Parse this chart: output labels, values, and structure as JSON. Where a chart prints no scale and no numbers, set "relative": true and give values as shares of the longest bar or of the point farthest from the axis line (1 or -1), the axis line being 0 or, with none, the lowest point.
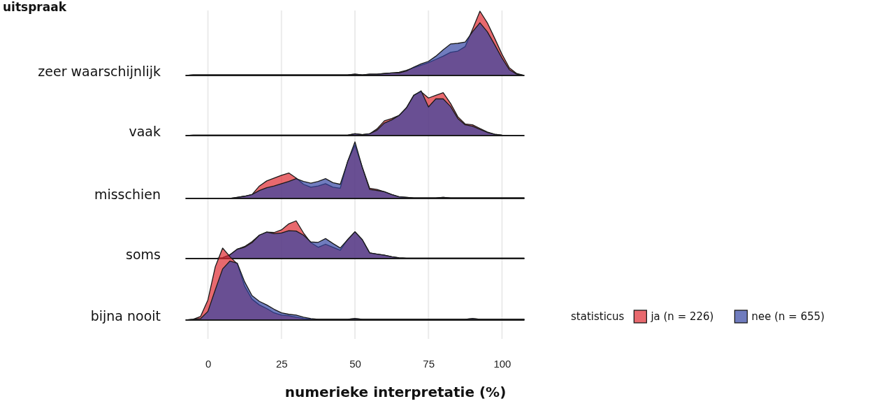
{
  "chart_data": [
    {
      "type": "other",
      "title": "uitspraak"
    },
    {
      "type": "area",
      "ylabel": "zeer waarschijnlijk",
      "relative": true,
      "xlim": [
        -7.5,
        107.5
      ],
      "xticks": [
        0,
        25,
        50,
        75,
        100
      ],
      "tick_labels": false,
      "grid": "x",
      "x": [
        -7.5,
        -5,
        -2.5,
        0,
        2.5,
        5,
        7.5,
        10,
        12.5,
        15,
        17.5,
        20,
        22.5,
        25,
        27.5,
        30,
        32.5,
        35,
        37.5,
        40,
        42.5,
        45,
        47.5,
        50,
        52.5,
        55,
        57.5,
        60,
        62.5,
        65,
        67.5,
        70,
        72.5,
        75,
        77.5,
        80,
        82.5,
        85,
        87.5,
        90,
        92.5,
        95,
        97.5,
        100,
        102.5,
        105,
        107.5
      ],
      "series": [
        {
          "color": "#de2a30",
          "values": [
            0,
            0.01,
            0.01,
            0.01,
            0.01,
            0.01,
            0.01,
            0.01,
            0.01,
            0.01,
            0.01,
            0.01,
            0.01,
            0.01,
            0.01,
            0.01,
            0.01,
            0.01,
            0.01,
            0.01,
            0.01,
            0.01,
            0.01,
            0.02,
            0.01,
            0.02,
            0.02,
            0.03,
            0.04,
            0.05,
            0.08,
            0.12,
            0.16,
            0.2,
            0.25,
            0.3,
            0.36,
            0.38,
            0.45,
            0.72,
            1,
            0.82,
            0.58,
            0.33,
            0.12,
            0.03,
            0
          ]
        },
        {
          "color": "#3345a2",
          "values": [
            0,
            0.01,
            0.01,
            0.01,
            0.01,
            0.01,
            0.01,
            0.01,
            0.01,
            0.01,
            0.01,
            0.01,
            0.01,
            0.01,
            0.01,
            0.01,
            0.01,
            0.01,
            0.01,
            0.01,
            0.01,
            0.01,
            0.01,
            0.02,
            0.01,
            0.02,
            0.02,
            0.03,
            0.04,
            0.04,
            0.07,
            0.13,
            0.18,
            0.22,
            0.3,
            0.4,
            0.49,
            0.5,
            0.52,
            0.68,
            0.82,
            0.68,
            0.48,
            0.27,
            0.09,
            0.02,
            0
          ]
        }
      ]
    },
    {
      "type": "area",
      "ylabel": "vaak",
      "relative": true,
      "xlim": [
        -7.5,
        107.5
      ],
      "xticks": [
        0,
        25,
        50,
        75,
        100
      ],
      "tick_labels": false,
      "grid": "x",
      "x": [
        -7.5,
        -5,
        -2.5,
        0,
        2.5,
        5,
        7.5,
        10,
        12.5,
        15,
        17.5,
        20,
        22.5,
        25,
        27.5,
        30,
        32.5,
        35,
        37.5,
        40,
        42.5,
        45,
        47.5,
        50,
        52.5,
        55,
        57.5,
        60,
        62.5,
        65,
        67.5,
        70,
        72.5,
        75,
        77.5,
        80,
        82.5,
        85,
        87.5,
        90,
        92.5,
        95,
        97.5,
        100,
        102.5,
        105,
        107.5
      ],
      "series": [
        {
          "color": "#de2a30",
          "values": [
            0,
            0.01,
            0.01,
            0.01,
            0.01,
            0.01,
            0.01,
            0.01,
            0.01,
            0.01,
            0.01,
            0.01,
            0.01,
            0.01,
            0.01,
            0.01,
            0.01,
            0.01,
            0.01,
            0.01,
            0.01,
            0.01,
            0.01,
            0.04,
            0.02,
            0.04,
            0.15,
            0.33,
            0.38,
            0.45,
            0.62,
            0.9,
            0.98,
            0.84,
            0.9,
            0.96,
            0.72,
            0.42,
            0.26,
            0.24,
            0.16,
            0.08,
            0.03,
            0.01,
            0,
            0,
            0
          ]
        },
        {
          "color": "#3345a2",
          "values": [
            0,
            0.01,
            0.01,
            0.01,
            0.01,
            0.01,
            0.01,
            0.01,
            0.01,
            0.01,
            0.01,
            0.01,
            0.01,
            0.01,
            0.01,
            0.01,
            0.01,
            0.01,
            0.01,
            0.01,
            0.01,
            0.01,
            0.01,
            0.04,
            0.02,
            0.04,
            0.12,
            0.28,
            0.35,
            0.45,
            0.62,
            0.9,
            1,
            0.64,
            0.82,
            0.82,
            0.65,
            0.38,
            0.24,
            0.21,
            0.14,
            0.07,
            0.03,
            0.01,
            0,
            0,
            0
          ]
        }
      ]
    },
    {
      "type": "area",
      "ylabel": "misschien",
      "relative": true,
      "xlim": [
        -7.5,
        107.5
      ],
      "xticks": [
        0,
        25,
        50,
        75,
        100
      ],
      "tick_labels": false,
      "grid": "x",
      "x": [
        -7.5,
        -5,
        -2.5,
        0,
        2.5,
        5,
        7.5,
        10,
        12.5,
        15,
        17.5,
        20,
        22.5,
        25,
        27.5,
        30,
        32.5,
        35,
        37.5,
        40,
        42.5,
        45,
        47.5,
        50,
        52.5,
        55,
        57.5,
        60,
        62.5,
        65,
        67.5,
        70,
        72.5,
        75,
        77.5,
        80,
        82.5,
        85,
        87.5,
        90,
        92.5,
        95,
        97.5,
        100,
        102.5,
        105,
        107.5
      ],
      "series": [
        {
          "color": "#de2a30",
          "values": [
            0,
            0,
            0,
            0,
            0,
            0,
            0,
            0.02,
            0.04,
            0.07,
            0.22,
            0.31,
            0.36,
            0.41,
            0.45,
            0.36,
            0.25,
            0.2,
            0.22,
            0.26,
            0.2,
            0.18,
            0.65,
            0.94,
            0.55,
            0.18,
            0.16,
            0.12,
            0.07,
            0.03,
            0.02,
            0.01,
            0.01,
            0.01,
            0.01,
            0.02,
            0.01,
            0.01,
            0.01,
            0.01,
            0.01,
            0.01,
            0.01,
            0.01,
            0.01,
            0.01,
            0.01
          ]
        },
        {
          "color": "#3345a2",
          "values": [
            0,
            0,
            0,
            0,
            0,
            0,
            0,
            0.02,
            0.04,
            0.07,
            0.14,
            0.19,
            0.22,
            0.26,
            0.3,
            0.35,
            0.3,
            0.27,
            0.3,
            0.35,
            0.28,
            0.25,
            0.65,
            1,
            0.55,
            0.16,
            0.14,
            0.12,
            0.07,
            0.03,
            0.02,
            0.01,
            0.01,
            0.01,
            0.01,
            0.02,
            0.01,
            0.01,
            0.01,
            0.01,
            0.01,
            0.01,
            0.01,
            0.01,
            0.01,
            0.01,
            0.01
          ]
        }
      ]
    },
    {
      "type": "area",
      "ylabel": "soms",
      "relative": true,
      "xlim": [
        -7.5,
        107.5
      ],
      "xticks": [
        0,
        25,
        50,
        75,
        100
      ],
      "tick_labels": false,
      "grid": "x",
      "x": [
        -7.5,
        -5,
        -2.5,
        0,
        2.5,
        5,
        7.5,
        10,
        12.5,
        15,
        17.5,
        20,
        22.5,
        25,
        27.5,
        30,
        32.5,
        35,
        37.5,
        40,
        42.5,
        45,
        47.5,
        50,
        52.5,
        55,
        57.5,
        60,
        62.5,
        65,
        67.5,
        70,
        72.5,
        75,
        77.5,
        80,
        82.5,
        85,
        87.5,
        90,
        92.5,
        95,
        97.5,
        100,
        102.5,
        105,
        107.5
      ],
      "series": [
        {
          "color": "#de2a30",
          "values": [
            0,
            0,
            0,
            0,
            0,
            0.02,
            0.1,
            0.25,
            0.32,
            0.45,
            0.62,
            0.7,
            0.69,
            0.76,
            0.92,
            1,
            0.68,
            0.42,
            0.3,
            0.38,
            0.3,
            0.22,
            0.5,
            0.71,
            0.5,
            0.15,
            0.12,
            0.09,
            0.05,
            0.02,
            0.01,
            0.01,
            0.01,
            0.01,
            0.01,
            0.01,
            0.01,
            0.01,
            0.01,
            0.01,
            0.01,
            0.01,
            0.01,
            0.01,
            0.01,
            0.01,
            0.01
          ]
        },
        {
          "color": "#3345a2",
          "values": [
            0,
            0,
            0,
            0,
            0,
            0.02,
            0.1,
            0.25,
            0.3,
            0.42,
            0.62,
            0.7,
            0.66,
            0.68,
            0.74,
            0.73,
            0.62,
            0.44,
            0.43,
            0.53,
            0.4,
            0.28,
            0.5,
            0.71,
            0.5,
            0.15,
            0.12,
            0.09,
            0.05,
            0.02,
            0.01,
            0.01,
            0.01,
            0.01,
            0.01,
            0.01,
            0.01,
            0.01,
            0.01,
            0.01,
            0.01,
            0.01,
            0.01,
            0.01,
            0.01,
            0.01,
            0.01
          ]
        }
      ]
    },
    {
      "type": "area",
      "ylabel": "bijna nooit",
      "xlabel": "numerieke interpretatie (%)",
      "relative": true,
      "xlim": [
        -7.5,
        107.5
      ],
      "xticks": [
        0,
        25,
        50,
        75,
        100
      ],
      "tick_labels": "x",
      "grid": "x",
      "legend": "right",
      "legend_title": "statisticus",
      "x": [
        -7.5,
        -5,
        -2.5,
        0,
        2.5,
        5,
        7.5,
        10,
        12.5,
        15,
        17.5,
        20,
        22.5,
        25,
        27.5,
        30,
        32.5,
        35,
        37.5,
        40,
        42.5,
        45,
        47.5,
        50,
        52.5,
        55,
        57.5,
        60,
        62.5,
        65,
        67.5,
        70,
        72.5,
        75,
        77.5,
        80,
        82.5,
        85,
        87.5,
        90,
        92.5,
        95,
        97.5,
        100,
        102.5,
        105,
        107.5
      ],
      "series": [
        {
          "name": "ja (n = 226)",
          "color": "#de2a30",
          "values": [
            0,
            0.01,
            0.05,
            0.28,
            0.74,
            1,
            0.88,
            0.78,
            0.47,
            0.29,
            0.21,
            0.16,
            0.1,
            0.07,
            0.06,
            0.04,
            0.02,
            0.01,
            0.01,
            0.01,
            0.01,
            0.01,
            0.01,
            0.02,
            0.01,
            0.01,
            0.01,
            0.01,
            0.01,
            0.01,
            0.01,
            0.01,
            0.01,
            0.01,
            0.01,
            0.01,
            0.01,
            0.01,
            0.01,
            0.02,
            0.01,
            0.01,
            0.01,
            0.01,
            0.01,
            0.01,
            0.01
          ]
        },
        {
          "name": "nee (n = 655)",
          "color": "#3345a2",
          "values": [
            0,
            0.01,
            0.02,
            0.12,
            0.42,
            0.71,
            0.82,
            0.79,
            0.53,
            0.34,
            0.26,
            0.21,
            0.15,
            0.1,
            0.08,
            0.07,
            0.04,
            0.02,
            0.01,
            0.01,
            0.01,
            0.01,
            0.01,
            0.02,
            0.01,
            0.01,
            0.01,
            0.01,
            0.01,
            0.01,
            0.01,
            0.01,
            0.01,
            0.01,
            0.01,
            0.01,
            0.01,
            0.01,
            0.01,
            0.02,
            0.01,
            0.01,
            0.01,
            0.01,
            0.01,
            0.01,
            0.01
          ]
        }
      ]
    }
  ]
}
